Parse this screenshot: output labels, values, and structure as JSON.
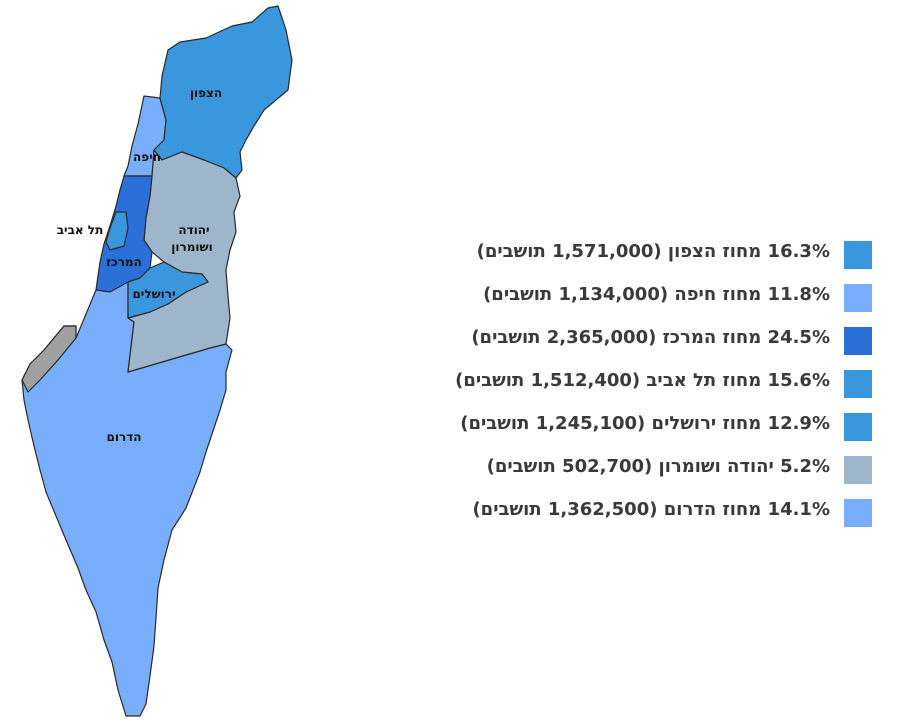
{
  "colors": {
    "north": "#3b97dd",
    "haifa": "#78aefb",
    "center": "#2b70d8",
    "telaviv": "#3b97dd",
    "jerusalem": "#3b97dd",
    "judea_samaria": "#9eb6cb",
    "south": "#78aefb",
    "gaza": "#a0a0a0"
  },
  "map_labels": {
    "north": "הצפון",
    "haifa": "חיפה",
    "telaviv": "תל אביב",
    "judea_samaria_line1": "יהודה",
    "judea_samaria_line2": "ושומרון",
    "center": "המרכז",
    "jerusalem": "ירושלים",
    "south": "הדרום"
  },
  "legend": [
    {
      "text": "16.3% מחוז הצפון (1,571,000 תושבים)",
      "color": "#3b97dd"
    },
    {
      "text": "11.8% מחוז חיפה (1,134,000 תושבים)",
      "color": "#78aefb"
    },
    {
      "text": "24.5% מחוז המרכז (2,365,000 תושבים)",
      "color": "#2b70d8"
    },
    {
      "text": "15.6% מחוז תל אביב (1,512,400 תושבים)",
      "color": "#3b97dd"
    },
    {
      "text": "12.9% מחוז ירושלים (1,245,100 תושבים)",
      "color": "#3b97dd"
    },
    {
      "text": "5.2% יהודה ושומרון (502,700 תושבים)",
      "color": "#9eb6cb"
    },
    {
      "text": "14.1% מחוז הדרום (1,362,500 תושבים)",
      "color": "#78aefb"
    }
  ]
}
